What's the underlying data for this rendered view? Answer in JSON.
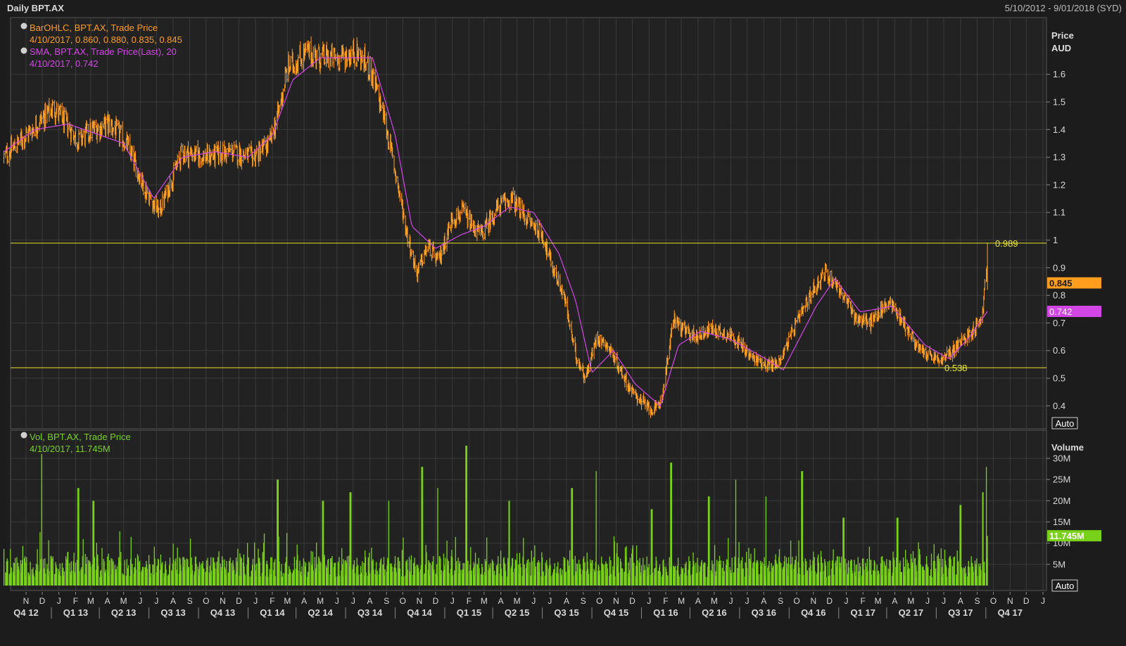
{
  "header": {
    "title": "Daily BPT.AX",
    "date_range": "5/10/2012 - 9/01/2018 (SYD)"
  },
  "colors": {
    "background": "#1c1c1c",
    "panel": "#222222",
    "grid": "#3a3a3a",
    "price": "#ff9d1e",
    "sma": "#d346e6",
    "volume": "#7ad11a",
    "hline": "#e8e62d"
  },
  "price_panel": {
    "legend": {
      "ohlc_title": "BarOHLC, BPT.AX, Trade Price",
      "ohlc_values": "4/10/2017, 0.860, 0.880, 0.835, 0.845",
      "sma_title": "SMA, BPT.AX, Trade Price(Last),  20",
      "sma_values": "4/10/2017, 0.742"
    },
    "axis_title": "Price",
    "axis_unit": "AUD",
    "auto_label": "Auto",
    "last_price_label": "0.845",
    "last_sma_label": "0.742",
    "hline_high_label": "0.989",
    "hline_low_label": "0.538"
  },
  "volume_panel": {
    "legend": {
      "title": "Vol, BPT.AX, Trade Price",
      "values": "4/10/2017, 11.745M"
    },
    "axis_title": "Volume",
    "auto_label": "Auto",
    "last_volume_label": "11.745M"
  },
  "chart_data": [
    {
      "type": "line",
      "series": [
        {
          "name": "BarOHLC, BPT.AX, Trade Price",
          "x": [
            "2012-10-05",
            "2012-11-15",
            "2013-01-05",
            "2013-02-20",
            "2013-03-20",
            "2013-04-20",
            "2013-05-20",
            "2013-06-25",
            "2013-07-20",
            "2013-09-01",
            "2013-10-15",
            "2013-12-01",
            "2014-01-10",
            "2014-02-10",
            "2014-02-25",
            "2014-03-15",
            "2014-04-20",
            "2014-05-15",
            "2014-06-20",
            "2014-07-20",
            "2014-08-15",
            "2014-09-10",
            "2014-10-01",
            "2014-10-20",
            "2014-11-10",
            "2014-12-01",
            "2014-12-20",
            "2015-01-15",
            "2015-02-05",
            "2015-02-20",
            "2015-03-10",
            "2015-04-10",
            "2015-05-05",
            "2015-06-01",
            "2015-07-01",
            "2015-07-20",
            "2015-08-10",
            "2015-09-01",
            "2015-09-20",
            "2015-10-10",
            "2015-10-30",
            "2015-11-25",
            "2015-12-15",
            "2016-01-10",
            "2016-01-25",
            "2016-02-08",
            "2016-03-01",
            "2016-03-15",
            "2016-04-10",
            "2016-05-10",
            "2016-06-20",
            "2016-07-20",
            "2016-08-20",
            "2016-09-10",
            "2016-10-15",
            "2016-11-15",
            "2016-12-05",
            "2016-12-25",
            "2017-02-01",
            "2017-03-01",
            "2017-04-05",
            "2017-05-01",
            "2017-06-01",
            "2017-07-10",
            "2017-08-10",
            "2017-09-10",
            "2017-09-25",
            "2017-10-01",
            "2017-10-04"
          ],
          "values": [
            1.3,
            1.38,
            1.48,
            1.36,
            1.4,
            1.42,
            1.35,
            1.18,
            1.1,
            1.32,
            1.3,
            1.32,
            1.3,
            1.35,
            1.45,
            1.62,
            1.68,
            1.66,
            1.66,
            1.68,
            1.62,
            1.45,
            1.25,
            1.05,
            0.88,
            0.98,
            0.92,
            1.08,
            1.1,
            1.05,
            1.02,
            1.12,
            1.15,
            1.08,
            1.02,
            0.9,
            0.8,
            0.58,
            0.5,
            0.65,
            0.62,
            0.52,
            0.45,
            0.4,
            0.38,
            0.43,
            0.72,
            0.68,
            0.65,
            0.68,
            0.65,
            0.58,
            0.55,
            0.55,
            0.7,
            0.82,
            0.88,
            0.85,
            0.72,
            0.7,
            0.78,
            0.7,
            0.6,
            0.56,
            0.62,
            0.68,
            0.73,
            0.9,
            0.845
          ]
        },
        {
          "name": "SMA, BPT.AX, Trade Price(Last),  20",
          "x": [
            "2012-10-05",
            "2012-12-01",
            "2013-02-01",
            "2013-04-01",
            "2013-05-15",
            "2013-07-10",
            "2013-09-01",
            "2013-11-01",
            "2014-01-01",
            "2014-02-15",
            "2014-03-25",
            "2014-05-15",
            "2014-07-01",
            "2014-08-20",
            "2014-10-01",
            "2014-11-01",
            "2014-12-15",
            "2015-02-01",
            "2015-03-15",
            "2015-05-01",
            "2015-06-15",
            "2015-08-01",
            "2015-09-01",
            "2015-10-01",
            "2015-11-10",
            "2015-12-20",
            "2016-02-05",
            "2016-03-10",
            "2016-04-20",
            "2016-06-15",
            "2016-08-10",
            "2016-09-20",
            "2016-11-20",
            "2016-12-25",
            "2017-02-10",
            "2017-04-10",
            "2017-06-10",
            "2017-07-25",
            "2017-09-01",
            "2017-10-04"
          ],
          "values": [
            1.32,
            1.4,
            1.42,
            1.38,
            1.35,
            1.15,
            1.3,
            1.32,
            1.3,
            1.38,
            1.58,
            1.66,
            1.66,
            1.66,
            1.38,
            1.05,
            0.97,
            1.02,
            1.05,
            1.12,
            1.1,
            0.95,
            0.78,
            0.52,
            0.6,
            0.48,
            0.4,
            0.62,
            0.67,
            0.64,
            0.58,
            0.53,
            0.76,
            0.86,
            0.74,
            0.76,
            0.62,
            0.57,
            0.65,
            0.742
          ]
        }
      ],
      "axis_title": "Price",
      "unit": "AUD",
      "ylim": [
        0.35,
        1.78
      ],
      "yticks": [
        0.4,
        0.5,
        0.6,
        0.7,
        0.8,
        0.9,
        1,
        1.1,
        1.2,
        1.3,
        1.4,
        1.5,
        1.6
      ],
      "horizontal_lines": [
        0.989,
        0.538
      ],
      "last_values": {
        "price": 0.845,
        "sma": 0.742
      },
      "legend": "top-left",
      "grid": true
    },
    {
      "type": "bar",
      "series": [
        {
          "name": "Vol, BPT.AX, Trade Price",
          "unit": "M",
          "spikes": [
            {
              "x": "2012-12-15",
              "value": 31
            },
            {
              "x": "2013-02-20",
              "value": 23
            },
            {
              "x": "2013-03-20",
              "value": 20
            },
            {
              "x": "2014-02-25",
              "value": 25
            },
            {
              "x": "2014-05-20",
              "value": 20
            },
            {
              "x": "2014-07-10",
              "value": 22
            },
            {
              "x": "2014-09-20",
              "value": 20
            },
            {
              "x": "2014-11-20",
              "value": 28
            },
            {
              "x": "2014-12-20",
              "value": 23
            },
            {
              "x": "2015-02-10",
              "value": 33
            },
            {
              "x": "2015-05-01",
              "value": 20
            },
            {
              "x": "2015-08-25",
              "value": 23
            },
            {
              "x": "2015-10-10",
              "value": 27
            },
            {
              "x": "2016-01-20",
              "value": 18
            },
            {
              "x": "2016-02-25",
              "value": 29
            },
            {
              "x": "2016-05-05",
              "value": 21
            },
            {
              "x": "2016-06-25",
              "value": 25
            },
            {
              "x": "2016-08-20",
              "value": 21
            },
            {
              "x": "2016-10-25",
              "value": 27
            },
            {
              "x": "2017-01-10",
              "value": 16
            },
            {
              "x": "2017-04-20",
              "value": 16
            },
            {
              "x": "2017-08-15",
              "value": 19
            },
            {
              "x": "2017-09-25",
              "value": 22
            },
            {
              "x": "2017-10-01",
              "value": 28
            }
          ]
        }
      ],
      "axis_title": "Volume",
      "ylim": [
        0,
        32
      ],
      "yticks": [
        5,
        10,
        15,
        20,
        25,
        30
      ],
      "ytick_labels": [
        "5M",
        "10M",
        "15M",
        "20M",
        "25M",
        "30M"
      ],
      "last_value": 11.745,
      "legend": "top-left",
      "grid": true
    }
  ],
  "x_axis": {
    "months": [
      {
        "d": "2012-11-15",
        "l": "N"
      },
      {
        "d": "2012-12-15",
        "l": "D"
      },
      {
        "d": "2013-01-15",
        "l": "J"
      },
      {
        "d": "2013-02-15",
        "l": "F"
      },
      {
        "d": "2013-03-15",
        "l": "M"
      },
      {
        "d": "2013-04-15",
        "l": "A"
      },
      {
        "d": "2013-05-15",
        "l": "M"
      },
      {
        "d": "2013-06-15",
        "l": "J"
      },
      {
        "d": "2013-07-15",
        "l": "J"
      },
      {
        "d": "2013-08-15",
        "l": "A"
      },
      {
        "d": "2013-09-15",
        "l": "S"
      },
      {
        "d": "2013-10-15",
        "l": "O"
      },
      {
        "d": "2013-11-15",
        "l": "N"
      },
      {
        "d": "2013-12-15",
        "l": "D"
      },
      {
        "d": "2014-01-15",
        "l": "J"
      },
      {
        "d": "2014-02-15",
        "l": "F"
      },
      {
        "d": "2014-03-15",
        "l": "M"
      },
      {
        "d": "2014-04-15",
        "l": "A"
      },
      {
        "d": "2014-05-15",
        "l": "M"
      },
      {
        "d": "2014-06-15",
        "l": "J"
      },
      {
        "d": "2014-07-15",
        "l": "J"
      },
      {
        "d": "2014-08-15",
        "l": "A"
      },
      {
        "d": "2014-09-15",
        "l": "S"
      },
      {
        "d": "2014-10-15",
        "l": "O"
      },
      {
        "d": "2014-11-15",
        "l": "N"
      },
      {
        "d": "2014-12-15",
        "l": "D"
      },
      {
        "d": "2015-01-15",
        "l": "J"
      },
      {
        "d": "2015-02-15",
        "l": "F"
      },
      {
        "d": "2015-03-15",
        "l": "M"
      },
      {
        "d": "2015-04-15",
        "l": "A"
      },
      {
        "d": "2015-05-15",
        "l": "M"
      },
      {
        "d": "2015-06-15",
        "l": "J"
      },
      {
        "d": "2015-07-15",
        "l": "J"
      },
      {
        "d": "2015-08-15",
        "l": "A"
      },
      {
        "d": "2015-09-15",
        "l": "S"
      },
      {
        "d": "2015-10-15",
        "l": "O"
      },
      {
        "d": "2015-11-15",
        "l": "N"
      },
      {
        "d": "2015-12-15",
        "l": "D"
      },
      {
        "d": "2016-01-15",
        "l": "J"
      },
      {
        "d": "2016-02-15",
        "l": "F"
      },
      {
        "d": "2016-03-15",
        "l": "M"
      },
      {
        "d": "2016-04-15",
        "l": "A"
      },
      {
        "d": "2016-05-15",
        "l": "M"
      },
      {
        "d": "2016-06-15",
        "l": "J"
      },
      {
        "d": "2016-07-15",
        "l": "J"
      },
      {
        "d": "2016-08-15",
        "l": "A"
      },
      {
        "d": "2016-09-15",
        "l": "S"
      },
      {
        "d": "2016-10-15",
        "l": "O"
      },
      {
        "d": "2016-11-15",
        "l": "N"
      },
      {
        "d": "2016-12-15",
        "l": "D"
      },
      {
        "d": "2017-01-15",
        "l": "J"
      },
      {
        "d": "2017-02-15",
        "l": "F"
      },
      {
        "d": "2017-03-15",
        "l": "M"
      },
      {
        "d": "2017-04-15",
        "l": "A"
      },
      {
        "d": "2017-05-15",
        "l": "M"
      },
      {
        "d": "2017-06-15",
        "l": "J"
      },
      {
        "d": "2017-07-15",
        "l": "J"
      },
      {
        "d": "2017-08-15",
        "l": "A"
      },
      {
        "d": "2017-09-15",
        "l": "S"
      },
      {
        "d": "2017-10-15",
        "l": "O"
      },
      {
        "d": "2017-11-15",
        "l": "N"
      },
      {
        "d": "2017-12-15",
        "l": "D"
      },
      {
        "d": "2018-01-15",
        "l": "J"
      }
    ],
    "quarters": [
      {
        "d": "2012-11-15",
        "l": "Q4 12"
      },
      {
        "d": "2013-02-15",
        "l": "Q1 13"
      },
      {
        "d": "2013-05-15",
        "l": "Q2 13"
      },
      {
        "d": "2013-08-15",
        "l": "Q3 13"
      },
      {
        "d": "2013-11-15",
        "l": "Q4 13"
      },
      {
        "d": "2014-02-15",
        "l": "Q1 14"
      },
      {
        "d": "2014-05-15",
        "l": "Q2 14"
      },
      {
        "d": "2014-08-15",
        "l": "Q3 14"
      },
      {
        "d": "2014-11-15",
        "l": "Q4 14"
      },
      {
        "d": "2015-02-15",
        "l": "Q1 15"
      },
      {
        "d": "2015-05-15",
        "l": "Q2 15"
      },
      {
        "d": "2015-08-15",
        "l": "Q3 15"
      },
      {
        "d": "2015-11-15",
        "l": "Q4 15"
      },
      {
        "d": "2016-02-15",
        "l": "Q1 16"
      },
      {
        "d": "2016-05-15",
        "l": "Q2 16"
      },
      {
        "d": "2016-08-15",
        "l": "Q3 16"
      },
      {
        "d": "2016-11-15",
        "l": "Q4 16"
      },
      {
        "d": "2017-02-15",
        "l": "Q1 17"
      },
      {
        "d": "2017-05-15",
        "l": "Q2 17"
      },
      {
        "d": "2017-08-15",
        "l": "Q3 17"
      },
      {
        "d": "2017-11-15",
        "l": "Q4 17"
      }
    ]
  }
}
